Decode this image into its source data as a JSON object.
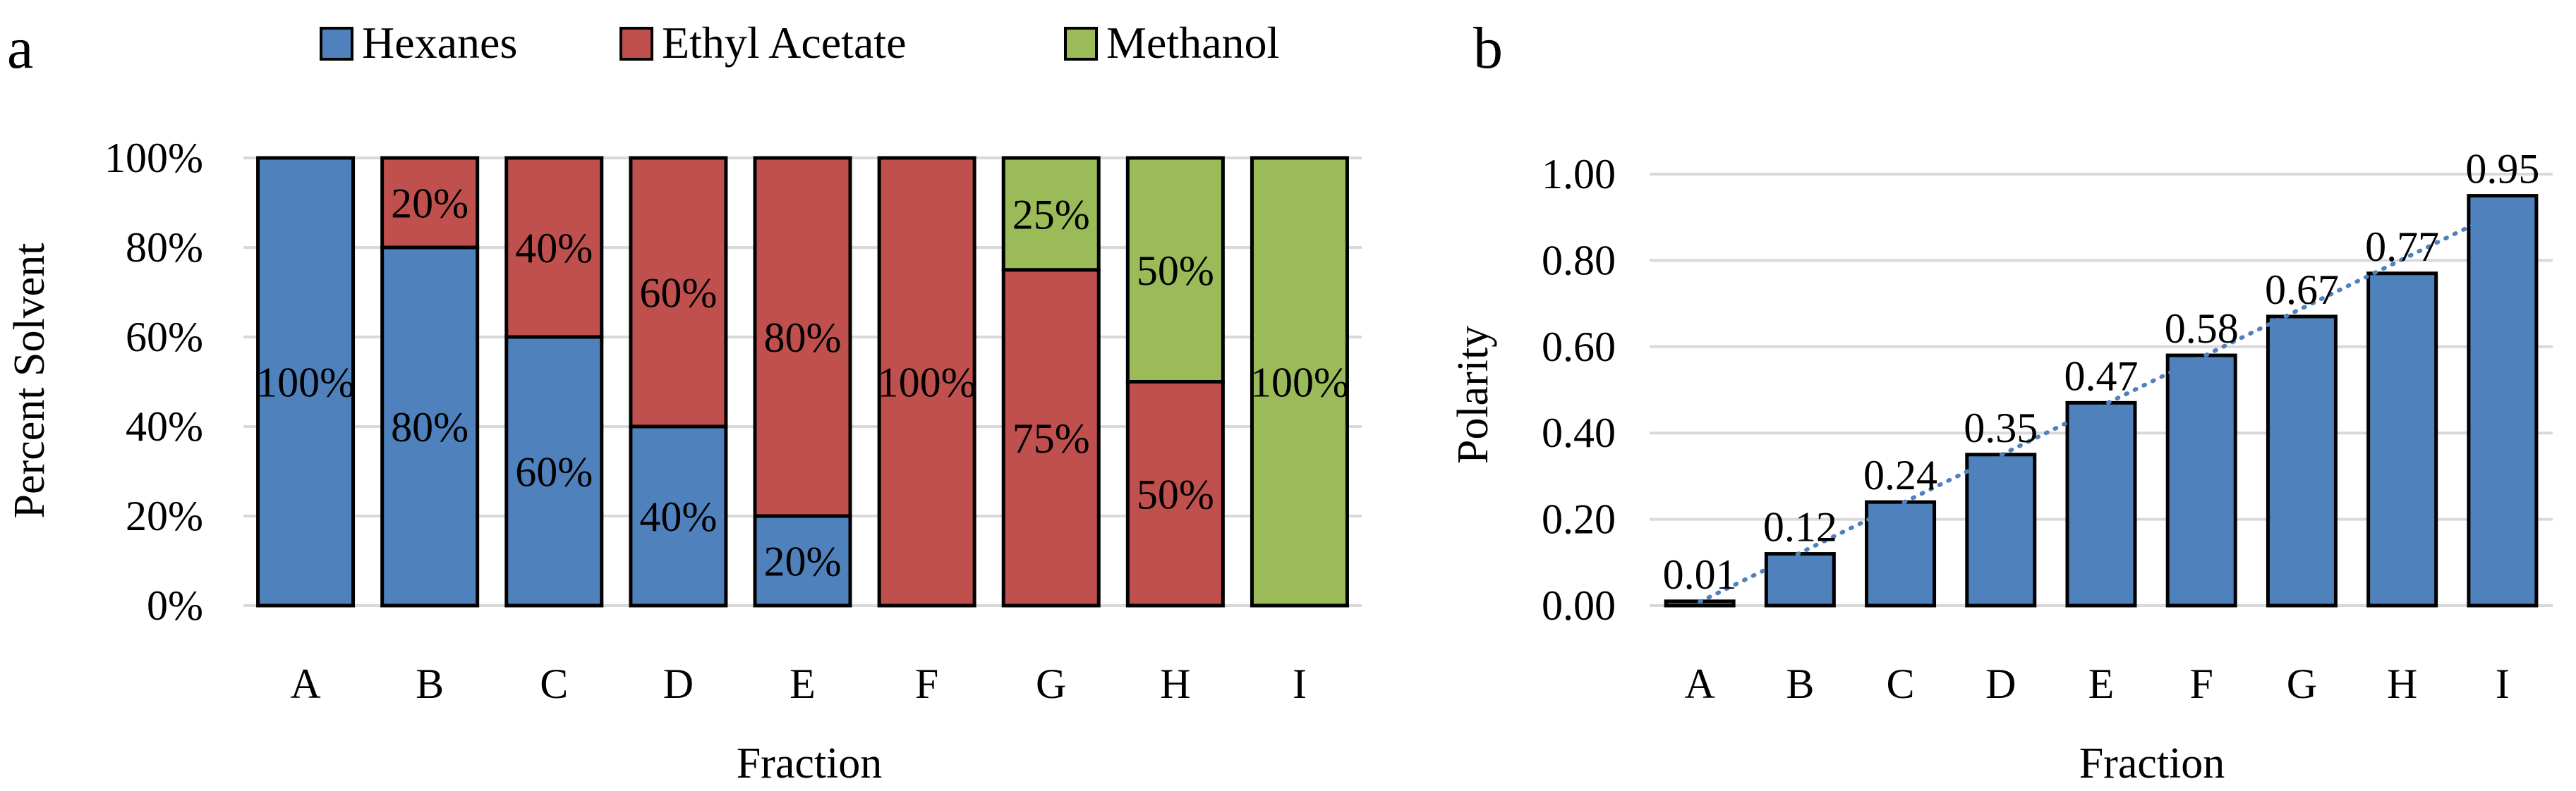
{
  "panels": [
    {
      "panel_label": "a",
      "chart_data": {
        "type": "bar",
        "stacked": true,
        "categories": [
          "A",
          "B",
          "C",
          "D",
          "E",
          "F",
          "G",
          "H",
          "I"
        ],
        "series": [
          {
            "name": "Hexanes",
            "color": "#4F81BD",
            "values": [
              100,
              80,
              60,
              40,
              20,
              0,
              0,
              0,
              0
            ]
          },
          {
            "name": "Ethyl Acetate",
            "color": "#C0504D",
            "values": [
              0,
              20,
              40,
              60,
              80,
              100,
              75,
              50,
              0
            ]
          },
          {
            "name": "Methanol",
            "color": "#9BBB59",
            "values": [
              0,
              0,
              0,
              0,
              0,
              0,
              25,
              50,
              100
            ]
          }
        ],
        "xlabel": "Fraction",
        "ylabel": "Percent Solvent",
        "ylim": [
          0,
          100
        ],
        "yticks": [
          "0%",
          "20%",
          "40%",
          "60%",
          "80%",
          "100%"
        ],
        "legend": "top",
        "grid": true
      }
    },
    {
      "panel_label": "b",
      "chart_data": {
        "type": "bar",
        "categories": [
          "A",
          "B",
          "C",
          "D",
          "E",
          "F",
          "G",
          "H",
          "I"
        ],
        "series": [
          {
            "color": "#4F81BD",
            "values": [
              0.01,
              0.12,
              0.24,
              0.35,
              0.47,
              0.58,
              0.67,
              0.77,
              0.95
            ],
            "labels": [
              "0.01",
              "0.12",
              "0.24",
              "0.35",
              "0.47",
              "0.58",
              "0.67",
              "0.77",
              "0.95"
            ]
          }
        ],
        "trendline": {
          "type": "linear",
          "style": "dotted",
          "color": "#4F81BD"
        },
        "xlabel": "Fraction",
        "ylabel": "Polarity",
        "ylim": [
          0,
          1.0
        ],
        "yticks": [
          "0.00",
          "0.20",
          "0.40",
          "0.60",
          "0.80",
          "1.00"
        ],
        "grid": true
      }
    }
  ]
}
